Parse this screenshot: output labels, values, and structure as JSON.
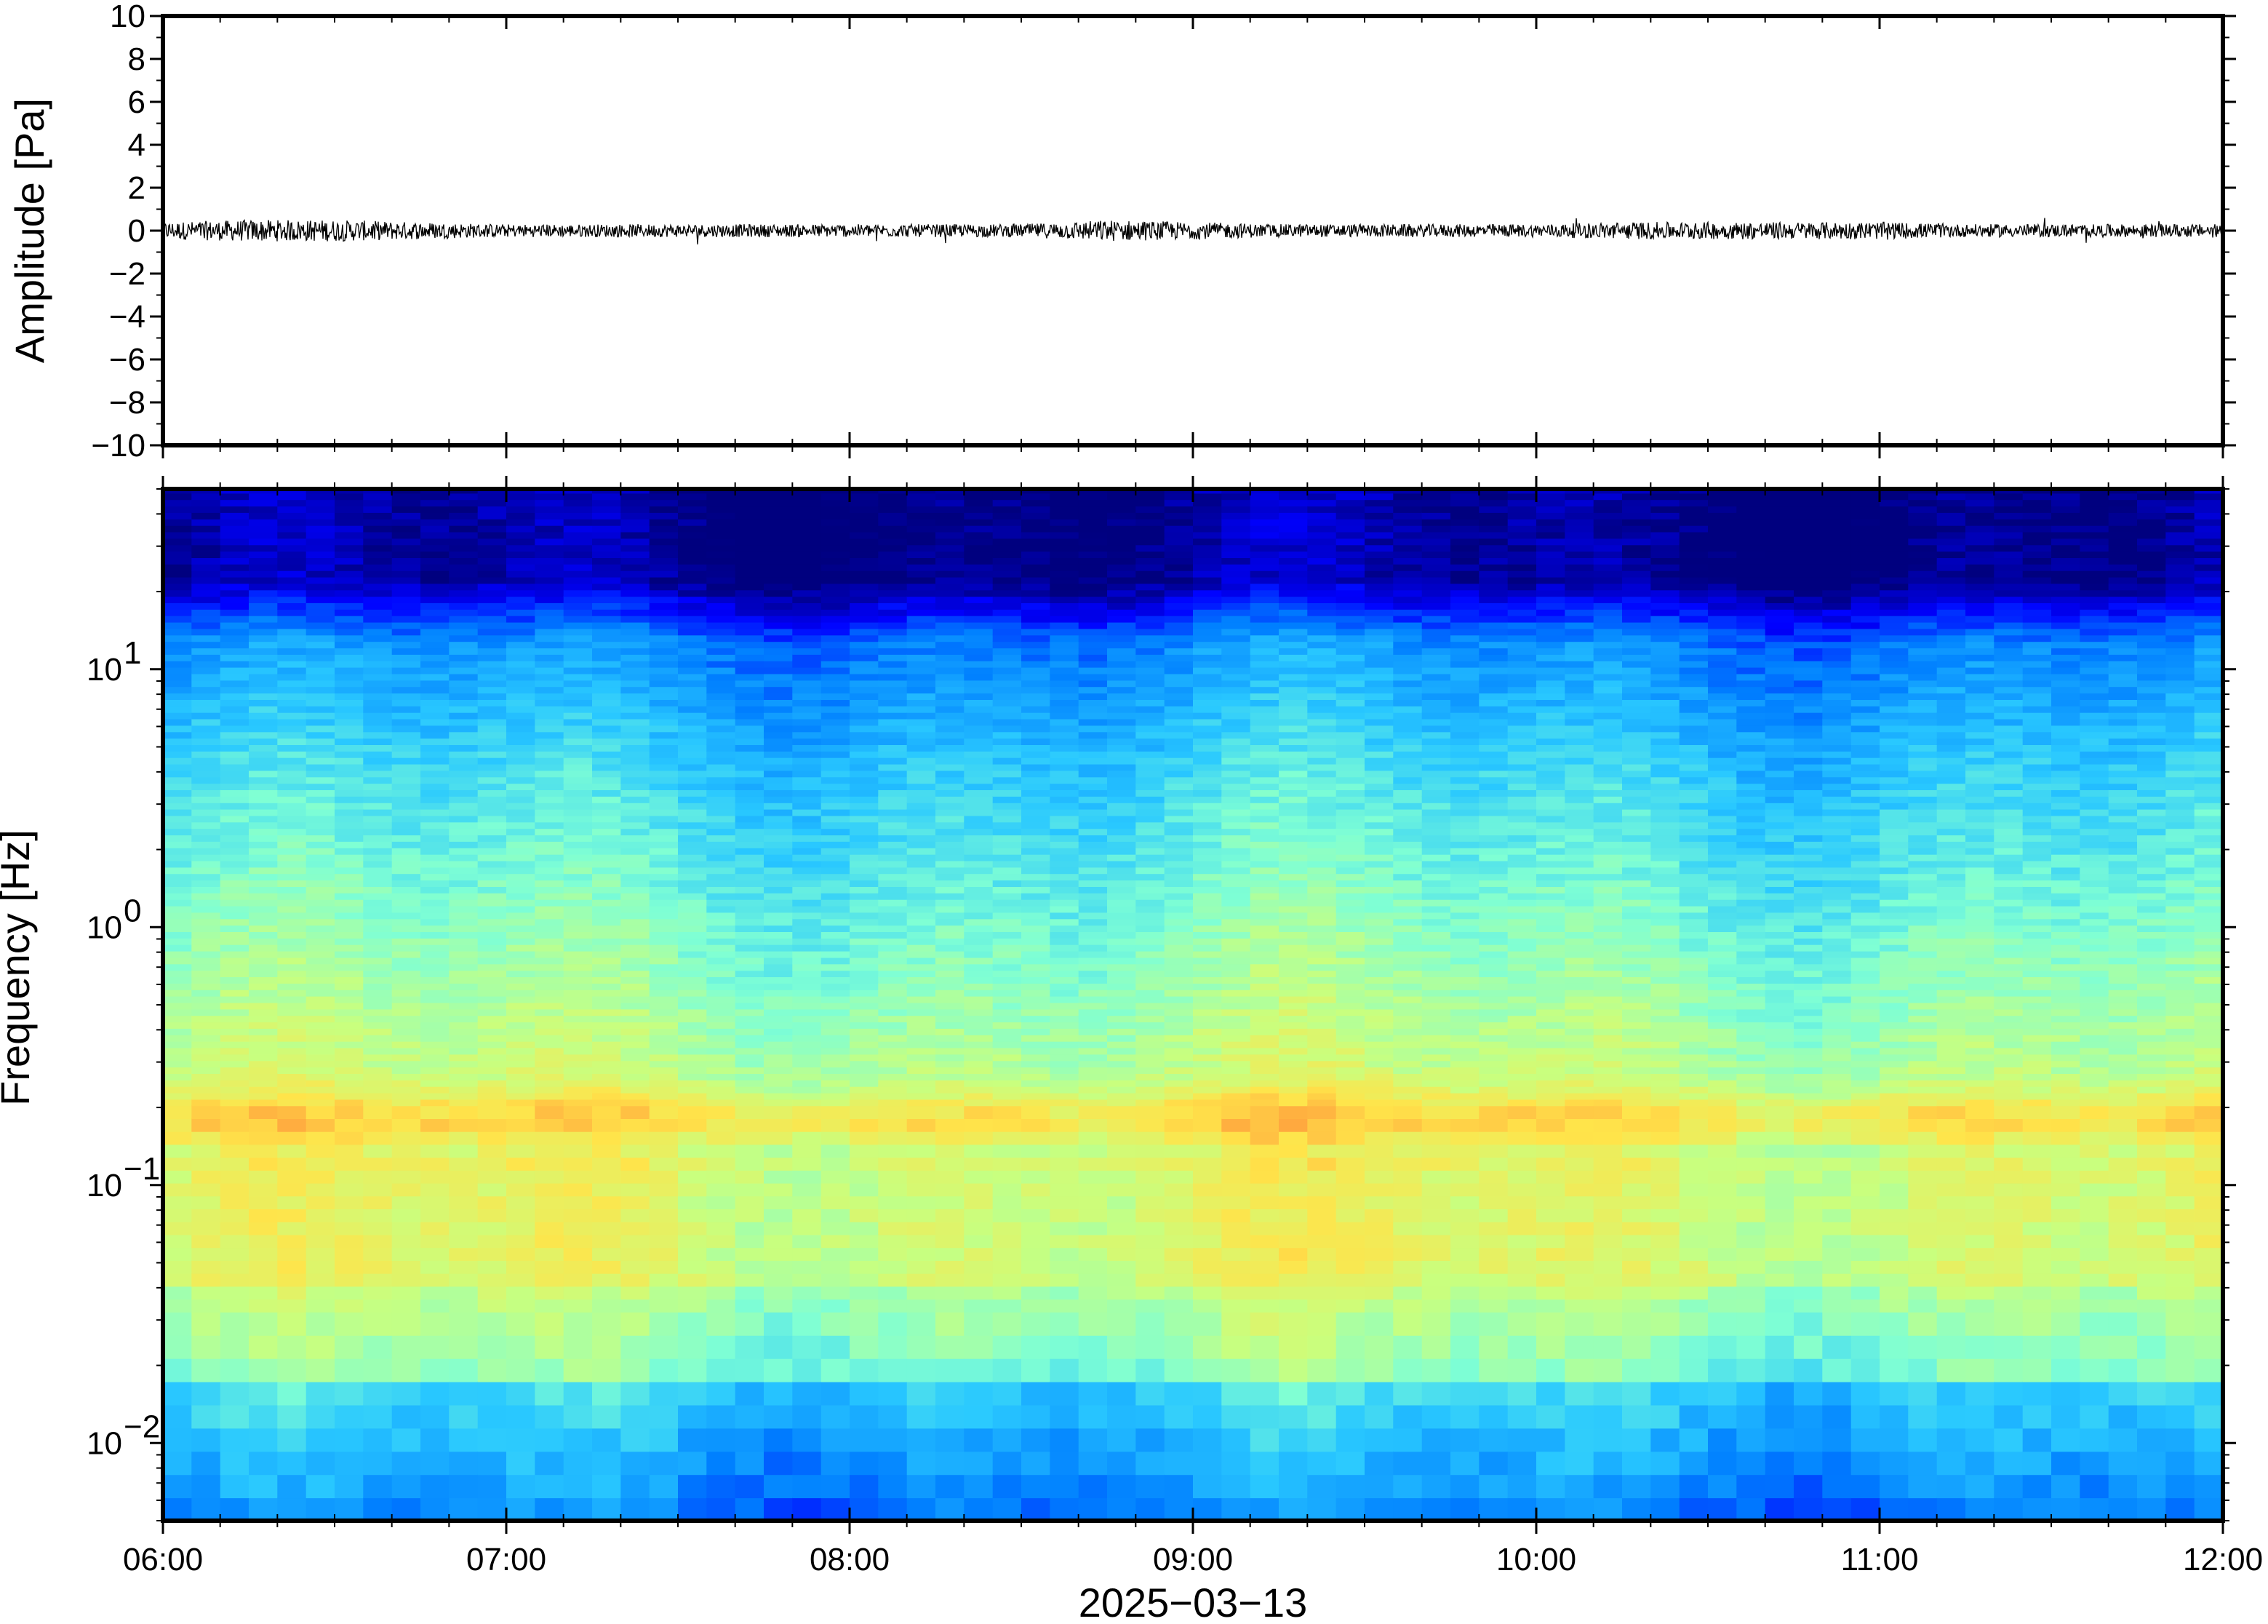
{
  "chart_data": [
    {
      "type": "line",
      "ylabel": "Amplitude [Pa]",
      "ylim": [
        -10,
        10
      ],
      "y_ticks": [
        "10",
        "8",
        "6",
        "4",
        "2",
        "0",
        "−2",
        "−4",
        "−6",
        "−8",
        "−10"
      ],
      "y_tick_values": [
        10,
        8,
        6,
        4,
        2,
        0,
        -2,
        -4,
        -6,
        -8,
        -10
      ],
      "xlim": [
        "06:00",
        "12:00"
      ],
      "series": [
        {
          "x": [
            "06:00",
            "06:15",
            "06:30",
            "06:45",
            "07:00",
            "07:15",
            "07:30",
            "07:45",
            "08:00",
            "08:15",
            "08:30",
            "08:45",
            "09:00",
            "09:15",
            "09:30",
            "09:45",
            "10:00",
            "10:15",
            "10:30",
            "10:45",
            "11:00",
            "11:15",
            "11:30",
            "11:45",
            "12:00"
          ],
          "envelope": [
            0.4,
            0.5,
            0.5,
            0.4,
            0.3,
            0.3,
            0.3,
            0.3,
            0.3,
            0.3,
            0.3,
            0.5,
            0.4,
            0.3,
            0.3,
            0.3,
            0.3,
            0.4,
            0.4,
            0.4,
            0.4,
            0.3,
            0.3,
            0.3,
            0.3
          ],
          "color": "#000000"
        }
      ],
      "grid": false
    },
    {
      "type": "heatmap",
      "ylabel": "Frequency [Hz]",
      "xlabel": "2025−03−13",
      "y_scale": "log",
      "ylim": [
        0.005,
        50
      ],
      "y_ticks": [
        {
          "value": 0.01,
          "base": "10",
          "exp": "−2"
        },
        {
          "value": 0.1,
          "base": "10",
          "exp": "−1"
        },
        {
          "value": 1,
          "base": "10",
          "exp": "0"
        },
        {
          "value": 10,
          "base": "10",
          "exp": "1"
        }
      ],
      "x_ticks": [
        "06:00",
        "07:00",
        "08:00",
        "09:00",
        "10:00",
        "11:00",
        "12:00"
      ],
      "xlim": [
        "06:00",
        "12:00"
      ],
      "colormap": [
        "#00007f",
        "#0000ff",
        "#007fff",
        "#29c8ff",
        "#7fffd4",
        "#c8ff7f",
        "#ffe44a",
        "#ff9a3c",
        "#ff3b1f"
      ],
      "microbarom_band_hz": 0.18,
      "grid": false
    }
  ]
}
